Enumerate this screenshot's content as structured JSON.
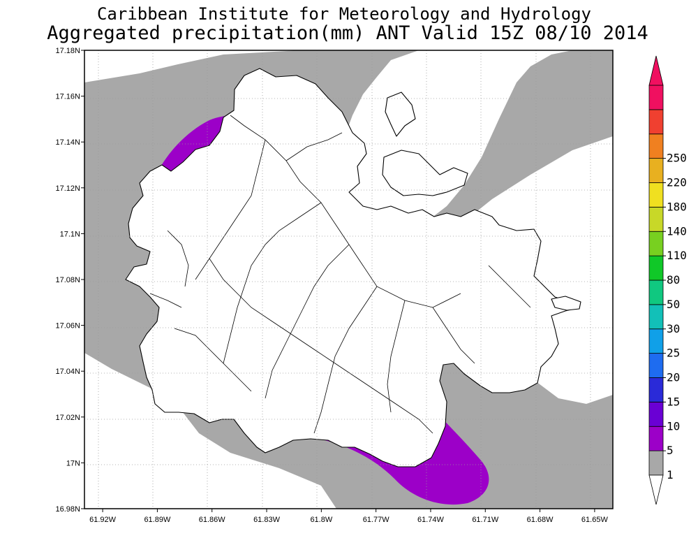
{
  "header": {
    "line1": "Caribbean Institute for Meteorology and Hydrology",
    "line2": "Aggregated precipitation(mm) ANT Valid 15Z 08/10 2014"
  },
  "map": {
    "lon_range": [
      -61.93,
      -61.64
    ],
    "lat_range": [
      16.98,
      17.18
    ],
    "lon_ticks": [
      {
        "value": -61.92,
        "label": "61.92W"
      },
      {
        "value": -61.89,
        "label": "61.89W"
      },
      {
        "value": -61.86,
        "label": "61.86W"
      },
      {
        "value": -61.83,
        "label": "61.83W"
      },
      {
        "value": -61.8,
        "label": "61.8W"
      },
      {
        "value": -61.77,
        "label": "61.77W"
      },
      {
        "value": -61.74,
        "label": "61.74W"
      },
      {
        "value": -61.71,
        "label": "61.71W"
      },
      {
        "value": -61.68,
        "label": "61.68W"
      },
      {
        "value": -61.65,
        "label": "61.65W"
      }
    ],
    "lat_ticks": [
      {
        "value": 17.18,
        "label": "17.18N"
      },
      {
        "value": 17.16,
        "label": "17.16N"
      },
      {
        "value": 17.14,
        "label": "17.14N"
      },
      {
        "value": 17.12,
        "label": "17.12N"
      },
      {
        "value": 17.1,
        "label": "17.1N"
      },
      {
        "value": 17.08,
        "label": "17.08N"
      },
      {
        "value": 17.06,
        "label": "17.06N"
      },
      {
        "value": 17.04,
        "label": "17.04N"
      },
      {
        "value": 17.02,
        "label": "17.02N"
      },
      {
        "value": 17.0,
        "label": "17N"
      },
      {
        "value": 16.98,
        "label": "16.98N"
      }
    ],
    "colors": {
      "band_1_5": "#a8a8a8",
      "band_5_10": "#9c00c8"
    }
  },
  "colorbar": {
    "bands": [
      {
        "color": "#a8a8a8"
      },
      {
        "color": "#9c00c8"
      },
      {
        "color": "#6a00d4"
      },
      {
        "color": "#2a2ad8"
      },
      {
        "color": "#1e6cf0"
      },
      {
        "color": "#10a0e8"
      },
      {
        "color": "#12c0b8"
      },
      {
        "color": "#10c880"
      },
      {
        "color": "#10c828"
      },
      {
        "color": "#78d020"
      },
      {
        "color": "#c8d828"
      },
      {
        "color": "#f0e020"
      },
      {
        "color": "#e8b020"
      },
      {
        "color": "#f08020"
      },
      {
        "color": "#f04030"
      },
      {
        "color": "#f01060"
      }
    ],
    "labels": [
      "1",
      "5",
      "10",
      "15",
      "20",
      "25",
      "30",
      "50",
      "80",
      "110",
      "140",
      "180",
      "220",
      "250"
    ]
  }
}
